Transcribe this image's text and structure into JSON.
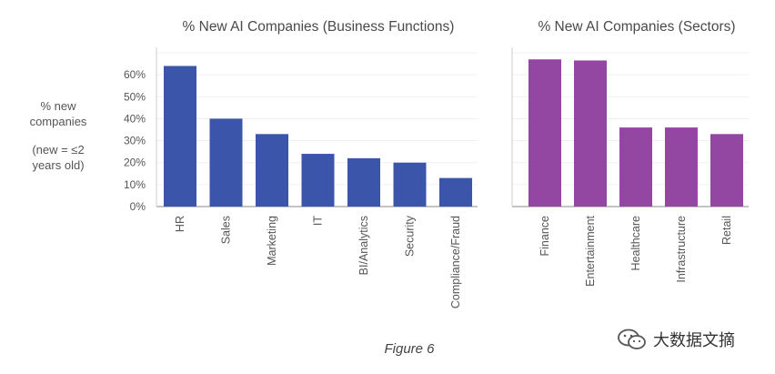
{
  "chart_data": [
    {
      "type": "bar",
      "title": "% New AI Companies (Business Functions)",
      "ylabel_lines": [
        "% new",
        "companies"
      ],
      "ylabel_note_lines": [
        "(new = ≤2",
        "years old)"
      ],
      "categories": [
        "HR",
        "Sales",
        "Marketing",
        "IT",
        "BI/Analytics",
        "Security",
        "Compliance/Fraud"
      ],
      "values": [
        64,
        40,
        33,
        24,
        22,
        20,
        13
      ],
      "yticks": [
        "0%",
        "10%",
        "20%",
        "30%",
        "40%",
        "50%",
        "60%"
      ],
      "ylim": [
        0,
        70
      ],
      "grid": true,
      "color": "#3b55ab"
    },
    {
      "type": "bar",
      "title": "% New AI Companies (Sectors)",
      "categories": [
        "Finance",
        "Entertainment",
        "Healthcare",
        "Infrastructure",
        "Retail"
      ],
      "values": [
        67,
        66.5,
        36,
        36,
        33
      ],
      "ylim": [
        0,
        70
      ],
      "grid": true,
      "color": "#9446a3"
    }
  ],
  "caption": "Figure 6",
  "watermark": {
    "text": "大数据文摘",
    "icon": "wechat-logo-icon"
  }
}
